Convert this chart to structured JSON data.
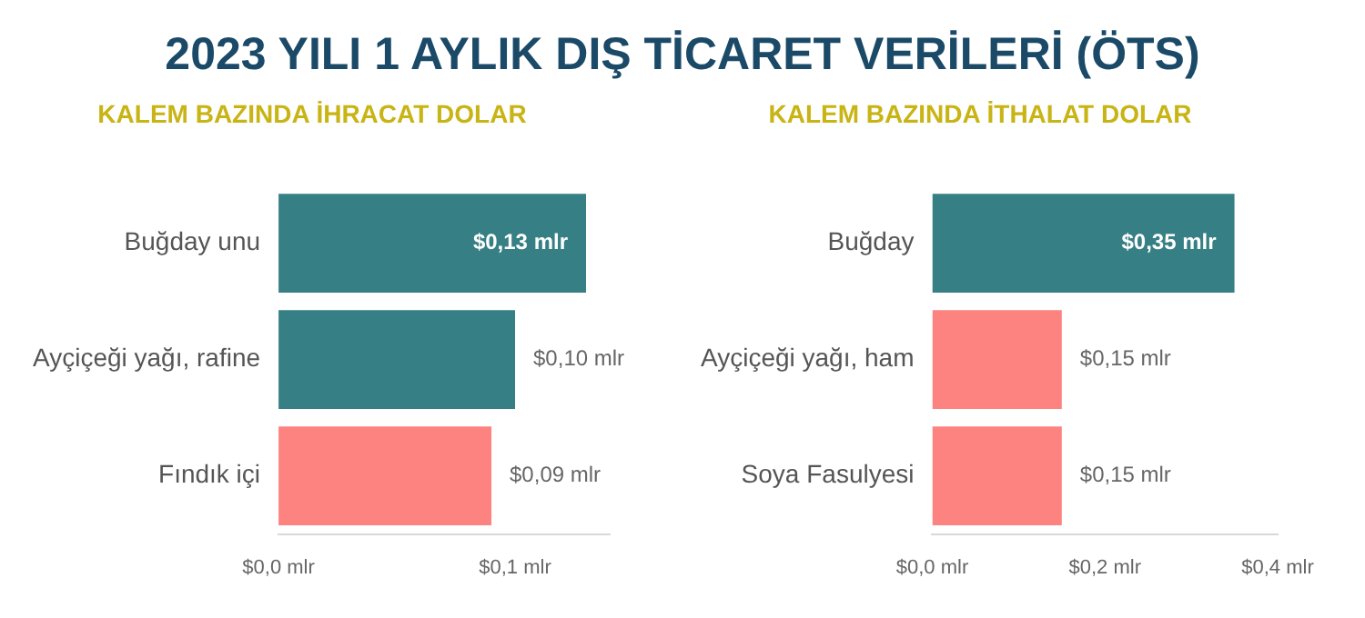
{
  "chart_data": [
    {
      "type": "bar",
      "orientation": "horizontal",
      "title": "2023 YILI 1 AYLIK DIŞ TİCARET VERİLERİ (ÖTS)",
      "subtitle": "KALEM BAZINDA İHRACAT DOLAR",
      "categories": [
        "Buğday unu",
        "Ayçiçeği yağı, rafine",
        "Fındık içi"
      ],
      "values": [
        0.13,
        0.1,
        0.09
      ],
      "colors": [
        "#367f84",
        "#367f84",
        "#fc8380"
      ],
      "value_labels": [
        "$0,13 mlr",
        "$0,10 mlr",
        "$0,09 mlr"
      ],
      "xlim": [
        0,
        0.14
      ],
      "xticks": [
        {
          "value": 0,
          "label": "$0,0 mlr"
        },
        {
          "value": 0.1,
          "label": "$0,1 mlr"
        }
      ],
      "grid": false,
      "legend": false
    },
    {
      "type": "bar",
      "orientation": "horizontal",
      "title": "KALEM BAZINDA İTHALAT DOLAR",
      "categories": [
        "Buğday",
        "Ayçiçeği yağı, ham",
        "Soya Fasulyesi"
      ],
      "values": [
        0.35,
        0.15,
        0.15
      ],
      "colors": [
        "#367f84",
        "#fc8380",
        "#fc8380"
      ],
      "value_labels": [
        "$0,35 mlr",
        "$0,15 mlr",
        "$0,15 mlr"
      ],
      "xlim": [
        0,
        0.4
      ],
      "xticks": [
        {
          "value": 0,
          "label": "$0,0 mlr"
        },
        {
          "value": 0.2,
          "label": "$0,2 mlr"
        },
        {
          "value": 0.4,
          "label": "$0,4 mlr"
        }
      ],
      "grid": false,
      "legend": false
    }
  ]
}
